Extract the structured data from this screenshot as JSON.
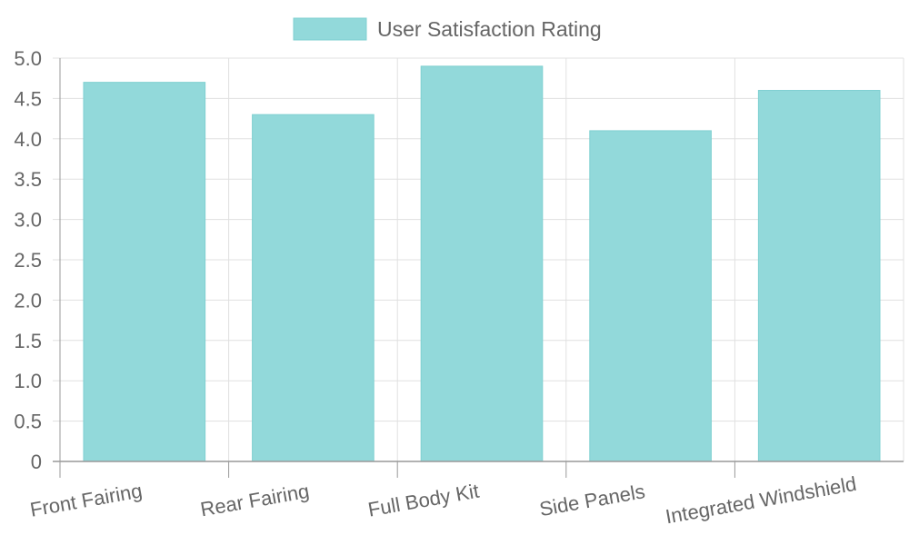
{
  "chart_data": {
    "type": "bar",
    "categories": [
      "Front Fairing",
      "Rear Fairing",
      "Full Body Kit",
      "Side Panels",
      "Integrated Windshield"
    ],
    "series": [
      {
        "name": "User Satisfaction Rating",
        "values": [
          4.7,
          4.3,
          4.9,
          4.1,
          4.6
        ]
      }
    ],
    "y_ticks": [
      "0",
      "0.5",
      "1.0",
      "1.5",
      "2.0",
      "2.5",
      "3.0",
      "3.5",
      "4.0",
      "4.5",
      "5.0"
    ],
    "ylim": [
      0,
      5
    ],
    "grid": true,
    "legend": "top-center",
    "colors": {
      "bar_fill": "#92d9da",
      "bar_stroke": "#7fd0d1",
      "grid": "#e0e0e0",
      "axis": "#999999",
      "text": "#666666"
    }
  }
}
